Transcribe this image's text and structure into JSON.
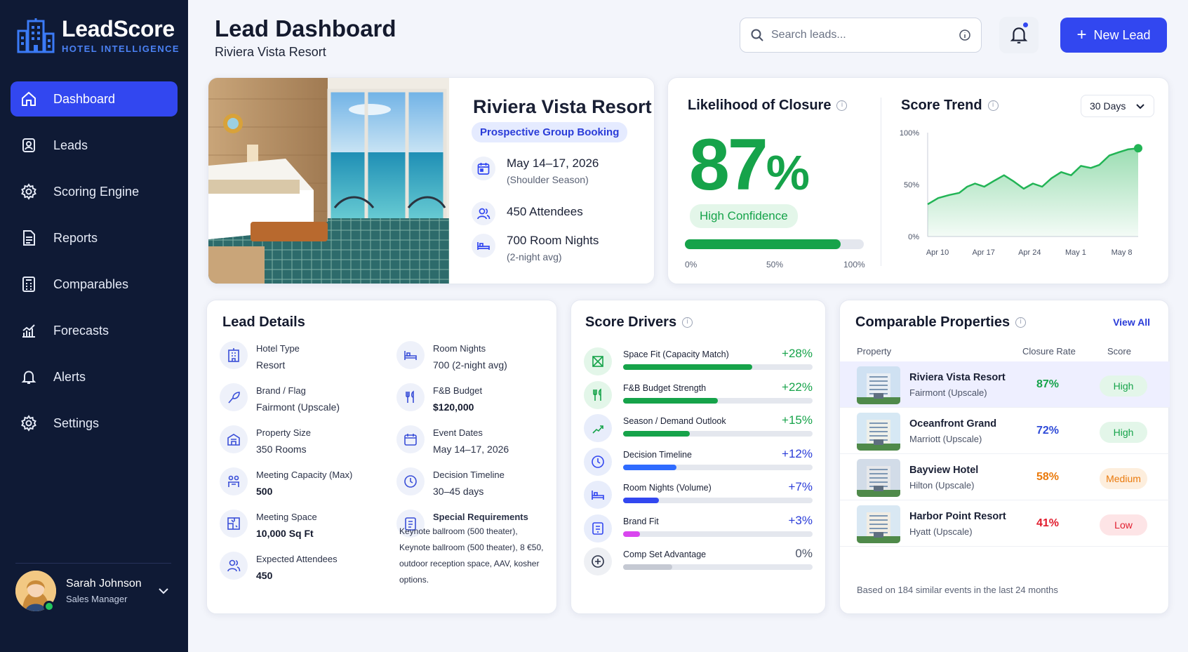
{
  "app": {
    "brand": "LeadScore",
    "tagline": "HOTEL INTELLIGENCE"
  },
  "sidebar": {
    "items": [
      {
        "label": "Dashboard",
        "icon": "home-icon",
        "active": true
      },
      {
        "label": "Leads",
        "icon": "contact-card-icon"
      },
      {
        "label": "Scoring Engine",
        "icon": "gear-icon"
      },
      {
        "label": "Reports",
        "icon": "document-icon"
      },
      {
        "label": "Comparables",
        "icon": "calculator-icon"
      },
      {
        "label": "Forecasts",
        "icon": "bar-chart-icon"
      },
      {
        "label": "Alerts",
        "icon": "bell-icon"
      },
      {
        "label": "Settings",
        "icon": "gear-icon"
      }
    ]
  },
  "user": {
    "name": "Sarah Johnson",
    "role": "Sales Manager",
    "status_color": "#22c55e"
  },
  "header": {
    "title": "Lead Dashboard",
    "subtitle": "Riviera Vista Resort",
    "search_placeholder": "Search leads...",
    "new_lead_label": "New Lead"
  },
  "hero": {
    "name": "Riviera Vista Resort",
    "badge": "Prospective Group Booking",
    "dates": "May 14–17, 2026",
    "dates_note": "(Shoulder Season)",
    "attendees": "450 Attendees",
    "room_nights": "700 Room Nights",
    "room_nights_note": "(2-night avg)"
  },
  "closure": {
    "title": "Likelihood of Closure",
    "value": "87",
    "unit": "%",
    "confidence": "High Confidence",
    "progress": 0.87,
    "scale_labels": [
      "0%",
      "50%",
      "100%"
    ]
  },
  "trend": {
    "title": "Score Trend",
    "range": "30 Days",
    "chart_data": {
      "type": "area",
      "y_ticks": [
        "100%",
        "50%",
        "0%"
      ],
      "x_ticks": [
        "Apr 10",
        "Apr 17",
        "Apr 24",
        "May 1",
        "May 8"
      ],
      "ylim": [
        0,
        100
      ],
      "x": [
        0,
        1.6,
        3.3,
        4.8,
        6,
        7.2,
        8.6,
        10.2,
        11.6,
        13.1,
        14.6,
        16,
        17.4,
        18.8,
        20.3,
        21.8,
        23.3,
        24.8,
        26.1,
        27.6,
        29,
        30.5,
        32
      ],
      "values": [
        31,
        37,
        40,
        42,
        48,
        51,
        48,
        54,
        59,
        53,
        46,
        51,
        48,
        56,
        62,
        59,
        68,
        66,
        69,
        78,
        81,
        84,
        85
      ],
      "grid": false,
      "color": "#22b455"
    }
  },
  "details": {
    "title": "Lead Details",
    "left": [
      {
        "label": "Hotel Type",
        "value": "Resort",
        "icon": "hotel-icon"
      },
      {
        "label": "Brand / Flag",
        "value": "Fairmont (Upscale)",
        "icon": "flag-icon"
      },
      {
        "label": "Property Size",
        "value": "350 Rooms",
        "icon": "building-icon"
      },
      {
        "label": "Meeting Capacity (Max)",
        "value": "500",
        "icon": "group-icon"
      },
      {
        "label": "Meeting Space",
        "value": "10,000 Sq Ft",
        "icon": "floor-plan-icon"
      },
      {
        "label": "Expected Attendees",
        "value": "450",
        "icon": "people-icon"
      }
    ],
    "right": [
      {
        "label": "Room Nights",
        "value": "700 (2-night avg)",
        "icon": "bed-icon"
      },
      {
        "label": "F&B Budget",
        "value": "$120,000",
        "icon": "utensils-icon"
      },
      {
        "label": "Event Dates",
        "value": "May 14–17, 2026",
        "icon": "calendar-icon"
      },
      {
        "label": "Decision Timeline",
        "value": "30–45 days",
        "icon": "clock-icon"
      }
    ],
    "special": {
      "label": "Special Requirements",
      "value": "Keynote ballroom (500 theater), Keynote ballroom (500 theater), 8 €50, outdoor reception space, AAV, kosher options.",
      "icon": "clipboard-icon"
    }
  },
  "drivers": {
    "title": "Score Drivers",
    "items": [
      {
        "label": "Space Fit (Capacity Match)",
        "value": "+28%",
        "progress": 0.68,
        "color": "#16a34a",
        "icon": "space-fit-icon",
        "icon_bg": "#e3f6e9"
      },
      {
        "label": "F&B Budget Strength",
        "value": "+22%",
        "progress": 0.5,
        "color": "#16a34a",
        "icon": "utensils-icon",
        "icon_bg": "#e3f6e9"
      },
      {
        "label": "Season / Demand Outlook",
        "value": "+15%",
        "progress": 0.35,
        "color": "#16a34a",
        "icon": "trend-icon",
        "icon_bg": "#e8edfb"
      },
      {
        "label": "Decision Timeline",
        "value": "+12%",
        "progress": 0.28,
        "color": "#2f6bff",
        "icon": "clock-icon",
        "icon_bg": "#e8edfb"
      },
      {
        "label": "Room Nights (Volume)",
        "value": "+7%",
        "progress": 0.19,
        "color": "#3247f0",
        "icon": "bed-icon",
        "icon_bg": "#e8edfb"
      },
      {
        "label": "Brand Fit",
        "value": "+3%",
        "progress": 0.09,
        "color": "#d946ef",
        "icon": "brand-icon",
        "icon_bg": "#e8edfb"
      },
      {
        "label": "Comp Set Advantage",
        "value": "0%",
        "progress": 0.26,
        "color": "#c5c9d3",
        "icon": "plus-circle-icon",
        "icon_bg": "#eef0f4"
      }
    ]
  },
  "comparables": {
    "title": "Comparable Properties",
    "view_all": "View All",
    "headers": [
      "Property",
      "Closure Rate",
      "Score"
    ],
    "rows": [
      {
        "name": "Riviera Vista Resort",
        "brand": "Fairmont (Upscale)",
        "rate": "87%",
        "score": "High",
        "rate_color": "#16a34a",
        "score_bg": "#e3f6e9",
        "score_color": "#16a34a",
        "selected": true
      },
      {
        "name": "Oceanfront Grand",
        "brand": "Marriott (Upscale)",
        "rate": "72%",
        "score": "High",
        "rate_color": "#2f4bd8",
        "score_bg": "#e3f6e9",
        "score_color": "#16a34a",
        "selected": false
      },
      {
        "name": "Bayview Hotel",
        "brand": "Hilton (Upscale)",
        "rate": "58%",
        "score": "Medium",
        "rate_color": "#ea7a0c",
        "score_bg": "#fdeedd",
        "score_color": "#ea7a0c",
        "selected": false
      },
      {
        "name": "Harbor Point Resort",
        "brand": "Hyatt (Upscale)",
        "rate": "41%",
        "score": "Low",
        "rate_color": "#e11d2e",
        "score_bg": "#fde4e6",
        "score_color": "#e11d2e",
        "selected": false
      }
    ],
    "footnote": "Based on 184 similar events in the last 24 months"
  },
  "colors": {
    "accent": "#3247f0",
    "sidebar": "#0f1a35",
    "positive": "#16a34a"
  }
}
